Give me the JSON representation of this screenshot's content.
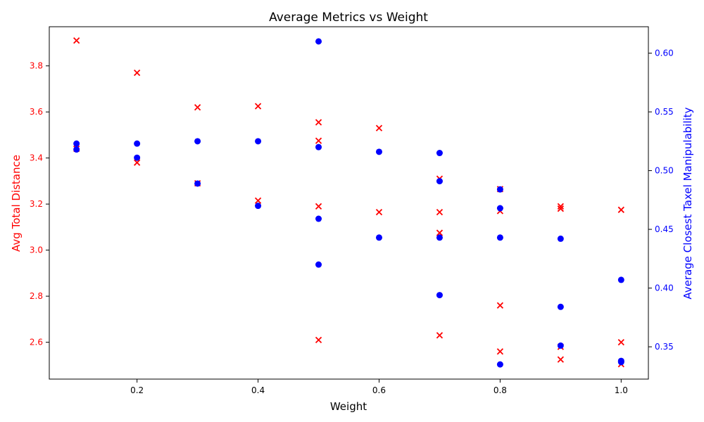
{
  "chart_data": {
    "type": "scatter",
    "title": "Average Metrics vs Weight",
    "xlabel": "Weight",
    "ylabel_left": "Avg Total Distance",
    "ylabel_right": "Average Closest Taxel Manipulability",
    "xlim": [
      0.055,
      1.045
    ],
    "ylim_left": [
      2.44,
      3.97
    ],
    "ylim_right": [
      0.3225,
      0.6225
    ],
    "x_ticks": [
      0.2,
      0.4,
      0.6,
      0.8,
      1.0
    ],
    "x_tick_labels": [
      "0.2",
      "0.4",
      "0.6",
      "0.8",
      "1.0"
    ],
    "left_ticks": [
      2.6,
      2.8,
      3.0,
      3.2,
      3.4,
      3.6,
      3.8
    ],
    "left_tick_labels": [
      "2.6",
      "2.8",
      "3.0",
      "3.2",
      "3.4",
      "3.6",
      "3.8"
    ],
    "right_ticks": [
      0.35,
      0.4,
      0.45,
      0.5,
      0.55,
      0.6
    ],
    "right_tick_labels": [
      "0.35",
      "0.40",
      "0.45",
      "0.50",
      "0.55",
      "0.60"
    ],
    "grid": false,
    "series": [
      {
        "axis": "left",
        "marker": "x",
        "color": "#ff0000",
        "points": [
          [
            0.1,
            3.91
          ],
          [
            0.1,
            3.44
          ],
          [
            0.2,
            3.77
          ],
          [
            0.2,
            3.38
          ],
          [
            0.3,
            3.62
          ],
          [
            0.3,
            3.29
          ],
          [
            0.4,
            3.625
          ],
          [
            0.4,
            3.215
          ],
          [
            0.5,
            3.555
          ],
          [
            0.5,
            3.475
          ],
          [
            0.5,
            3.19
          ],
          [
            0.5,
            2.61
          ],
          [
            0.6,
            3.53
          ],
          [
            0.6,
            3.165
          ],
          [
            0.7,
            3.31
          ],
          [
            0.7,
            3.165
          ],
          [
            0.7,
            3.075
          ],
          [
            0.7,
            2.63
          ],
          [
            0.8,
            3.265
          ],
          [
            0.8,
            3.17
          ],
          [
            0.8,
            2.76
          ],
          [
            0.8,
            2.56
          ],
          [
            0.9,
            3.19
          ],
          [
            0.9,
            3.18
          ],
          [
            0.9,
            2.58
          ],
          [
            0.9,
            2.525
          ],
          [
            1.0,
            3.175
          ],
          [
            1.0,
            2.6
          ],
          [
            1.0,
            2.505
          ]
        ]
      },
      {
        "axis": "right",
        "marker": "o",
        "color": "#0000ff",
        "points": [
          [
            0.1,
            0.523
          ],
          [
            0.1,
            0.518
          ],
          [
            0.2,
            0.523
          ],
          [
            0.2,
            0.511
          ],
          [
            0.3,
            0.525
          ],
          [
            0.3,
            0.489
          ],
          [
            0.4,
            0.525
          ],
          [
            0.4,
            0.47
          ],
          [
            0.5,
            0.61
          ],
          [
            0.5,
            0.52
          ],
          [
            0.5,
            0.459
          ],
          [
            0.5,
            0.42
          ],
          [
            0.6,
            0.516
          ],
          [
            0.6,
            0.443
          ],
          [
            0.7,
            0.515
          ],
          [
            0.7,
            0.491
          ],
          [
            0.7,
            0.443
          ],
          [
            0.7,
            0.394
          ],
          [
            0.8,
            0.484
          ],
          [
            0.8,
            0.468
          ],
          [
            0.8,
            0.443
          ],
          [
            0.8,
            0.335
          ],
          [
            0.9,
            0.442
          ],
          [
            0.9,
            0.384
          ],
          [
            0.9,
            0.351
          ],
          [
            1.0,
            0.407
          ],
          [
            1.0,
            0.338
          ],
          [
            1.0,
            0.337
          ]
        ]
      }
    ]
  }
}
